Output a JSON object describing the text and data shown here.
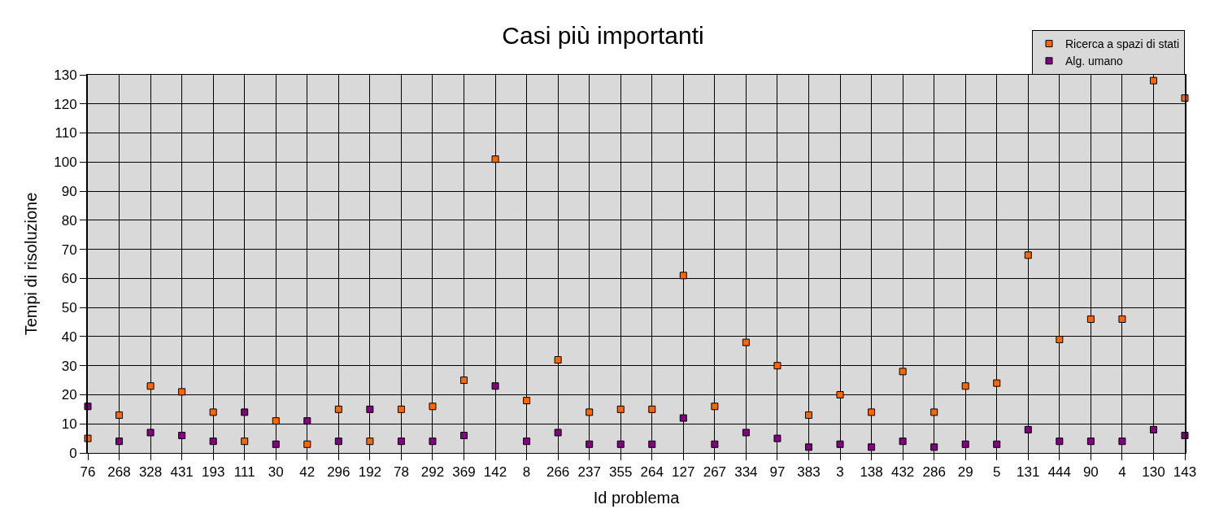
{
  "chart_data": {
    "type": "scatter",
    "title": "Casi più importanti",
    "xlabel": "Id problema",
    "ylabel": "Tempi di risoluzione",
    "categories": [
      "76",
      "268",
      "328",
      "431",
      "193",
      "111",
      "30",
      "42",
      "296",
      "192",
      "78",
      "292",
      "369",
      "142",
      "8",
      "266",
      "237",
      "355",
      "264",
      "127",
      "267",
      "334",
      "97",
      "383",
      "3",
      "138",
      "432",
      "286",
      "29",
      "5",
      "131",
      "444",
      "90",
      "4",
      "130",
      "143"
    ],
    "series": [
      {
        "name": "Ricerca a spazi di stati",
        "color": "#ff6600",
        "values": [
          5,
          13,
          23,
          21,
          14,
          4,
          11,
          3,
          15,
          4,
          15,
          16,
          25,
          101,
          18,
          32,
          14,
          15,
          15,
          61,
          16,
          38,
          30,
          13,
          20,
          14,
          28,
          14,
          23,
          24,
          68,
          39,
          46,
          46,
          128,
          122
        ]
      },
      {
        "name": "Alg. umano",
        "color": "#800080",
        "values": [
          16,
          4,
          7,
          6,
          4,
          14,
          3,
          11,
          4,
          15,
          4,
          4,
          6,
          23,
          4,
          7,
          3,
          3,
          3,
          12,
          3,
          7,
          5,
          2,
          3,
          2,
          4,
          2,
          3,
          3,
          8,
          4,
          4,
          4,
          8,
          6
        ]
      }
    ],
    "ylim": [
      0,
      130
    ],
    "yticks": [
      0,
      10,
      20,
      30,
      40,
      50,
      60,
      70,
      80,
      90,
      100,
      110,
      120,
      130
    ],
    "grid": true,
    "legend": "top right",
    "marker": "square"
  }
}
